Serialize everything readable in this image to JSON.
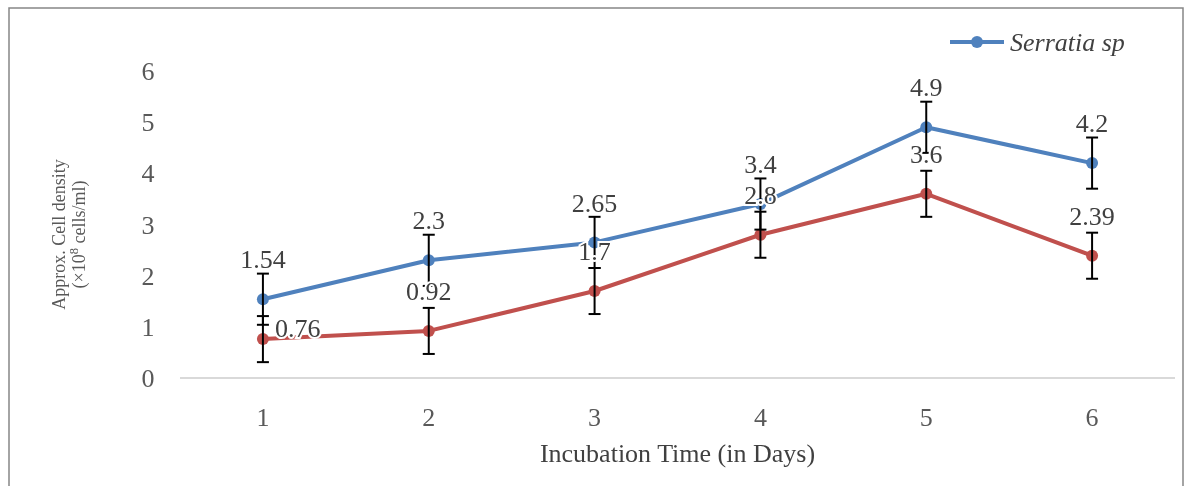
{
  "chart_data": {
    "type": "line",
    "xlabel": "Incubation Time (in Days)",
    "ylabel": "Approx. Cell density\n(×10$^{8}$ cells/ml)",
    "categories": [
      "1",
      "2",
      "3",
      "4",
      "5",
      "6"
    ],
    "ylim": [
      0,
      6
    ],
    "yticks": [
      0,
      1,
      2,
      3,
      4,
      5,
      6
    ],
    "grid": false,
    "legend": "top right",
    "marker": "circle",
    "line_style": "solid",
    "data_labels": true,
    "series": [
      {
        "name": "Serratia sp",
        "color": "#4f81bd",
        "values": [
          1.54,
          2.3,
          2.65,
          3.4,
          4.9,
          4.2
        ],
        "errors": [
          0.5,
          0.5,
          0.5,
          0.5,
          0.5,
          0.5
        ]
      },
      {
        "color": "#c0504d",
        "values": [
          0.76,
          0.92,
          1.7,
          2.8,
          3.6,
          2.39
        ],
        "errors": [
          0.45,
          0.45,
          0.45,
          0.45,
          0.45,
          0.45
        ]
      }
    ]
  }
}
